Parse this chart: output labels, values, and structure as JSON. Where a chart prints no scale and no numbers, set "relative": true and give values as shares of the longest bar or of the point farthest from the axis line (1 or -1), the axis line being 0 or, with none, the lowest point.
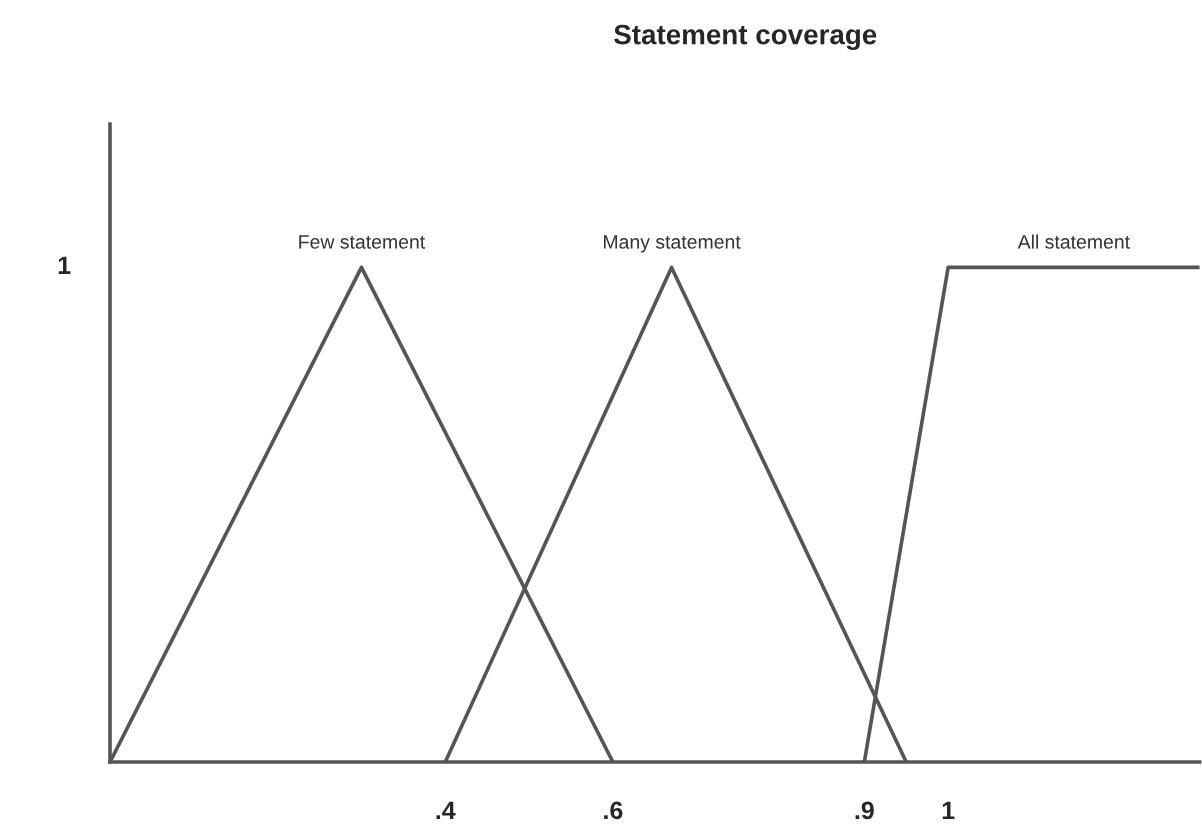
{
  "chart_data": {
    "type": "line",
    "title": "Statement coverage",
    "relative": true,
    "series": [
      {
        "name": "Few statement",
        "color": "#555555",
        "x": [
          0,
          0.3,
          0.6
        ],
        "values": [
          0,
          1,
          0
        ]
      },
      {
        "name": "Many statement",
        "color": "#555555",
        "x": [
          0.4,
          0.67,
          0.95
        ],
        "values": [
          0,
          1,
          0
        ]
      },
      {
        "name": "All statement",
        "color": "#555555",
        "x": [
          0.9,
          1.0,
          1.3
        ],
        "values": [
          0,
          1,
          1
        ]
      }
    ],
    "annotations": [
      "1"
    ],
    "xlim": [
      0,
      1.3
    ],
    "xticks": [
      {
        "value": 0.4,
        "label": ".4"
      },
      {
        "value": 0.6,
        "label": ".6"
      },
      {
        "value": 0.9,
        "label": ".9"
      },
      1
    ],
    "grid": false,
    "legend": false,
    "marker": "none",
    "line_style": "solid"
  }
}
